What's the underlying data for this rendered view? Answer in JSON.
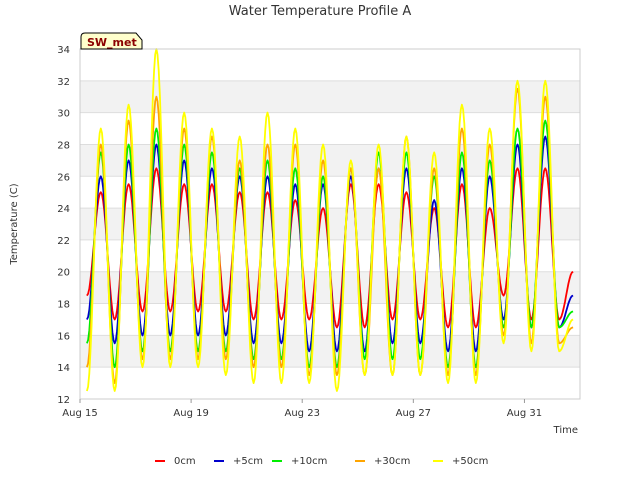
{
  "chart_data": {
    "type": "line",
    "title": "Water Temperature Profile A",
    "xlabel": "Time",
    "ylabel": "Temperature (C)",
    "site_badge": "SW_met",
    "x_ticks": [
      "Aug 15",
      "Aug 19",
      "Aug 23",
      "Aug 27",
      "Aug 31"
    ],
    "y_ticks": [
      12,
      14,
      16,
      18,
      20,
      22,
      24,
      26,
      28,
      30,
      32,
      34
    ],
    "ylim": [
      12,
      34
    ],
    "xlim": [
      "2023-08-15T00:00",
      "2023-09-02T00:00"
    ],
    "x": [
      "2023-08-15T06:00",
      "2023-08-15T18:00",
      "2023-08-16T06:00",
      "2023-08-16T18:00",
      "2023-08-17T06:00",
      "2023-08-17T18:00",
      "2023-08-18T06:00",
      "2023-08-18T18:00",
      "2023-08-19T06:00",
      "2023-08-19T18:00",
      "2023-08-20T06:00",
      "2023-08-20T18:00",
      "2023-08-21T06:00",
      "2023-08-21T18:00",
      "2023-08-22T06:00",
      "2023-08-22T18:00",
      "2023-08-23T06:00",
      "2023-08-23T18:00",
      "2023-08-24T06:00",
      "2023-08-24T18:00",
      "2023-08-25T06:00",
      "2023-08-25T18:00",
      "2023-08-26T06:00",
      "2023-08-26T18:00",
      "2023-08-27T06:00",
      "2023-08-27T18:00",
      "2023-08-28T06:00",
      "2023-08-28T18:00",
      "2023-08-29T06:00",
      "2023-08-29T18:00",
      "2023-08-30T06:00",
      "2023-08-30T18:00",
      "2023-08-31T06:00",
      "2023-08-31T18:00",
      "2023-09-01T06:00",
      "2023-09-01T18:00"
    ],
    "series": [
      {
        "name": "0cm",
        "color": "#ff0000",
        "values": [
          18.5,
          25.0,
          17.0,
          25.5,
          17.5,
          26.5,
          17.5,
          25.5,
          17.5,
          25.5,
          17.5,
          25.0,
          17.0,
          25.0,
          17.0,
          24.5,
          17.0,
          24.0,
          16.5,
          25.5,
          16.5,
          25.5,
          17.0,
          25.0,
          17.0,
          24.0,
          16.5,
          25.5,
          16.5,
          24.0,
          18.5,
          26.5,
          17.0,
          26.5,
          17.0,
          20.0
        ]
      },
      {
        "name": "+5cm",
        "color": "#0000cc",
        "values": [
          17.0,
          26.0,
          15.5,
          27.0,
          16.0,
          28.0,
          16.0,
          27.0,
          16.0,
          26.5,
          16.0,
          26.0,
          15.5,
          26.0,
          15.5,
          25.5,
          15.0,
          25.5,
          15.0,
          26.0,
          15.0,
          26.5,
          15.5,
          26.5,
          15.5,
          24.5,
          15.0,
          26.5,
          15.0,
          26.0,
          17.0,
          28.0,
          16.5,
          28.5,
          16.5,
          18.5
        ]
      },
      {
        "name": "+10cm",
        "color": "#00ee00",
        "values": [
          15.5,
          27.5,
          14.0,
          28.0,
          15.0,
          29.0,
          15.0,
          28.0,
          15.0,
          27.5,
          15.0,
          26.5,
          14.5,
          27.0,
          14.5,
          26.5,
          14.0,
          26.0,
          14.0,
          26.5,
          14.5,
          27.5,
          14.5,
          27.5,
          14.5,
          26.0,
          14.0,
          27.5,
          14.0,
          27.0,
          16.5,
          29.0,
          16.5,
          29.5,
          16.5,
          17.5
        ]
      },
      {
        "name": "+30cm",
        "color": "#ffa500",
        "values": [
          14.0,
          28.0,
          13.0,
          29.5,
          14.5,
          31.0,
          14.5,
          29.0,
          14.5,
          28.5,
          14.5,
          27.0,
          14.0,
          28.0,
          14.0,
          28.0,
          13.5,
          27.0,
          13.5,
          26.5,
          13.5,
          26.5,
          13.5,
          28.5,
          13.5,
          26.5,
          13.5,
          29.0,
          13.5,
          28.0,
          16.0,
          31.5,
          15.5,
          31.0,
          15.5,
          16.5
        ]
      },
      {
        "name": "+50cm",
        "color": "#ffff00",
        "values": [
          12.5,
          29.0,
          12.5,
          30.5,
          14.0,
          34.0,
          14.0,
          30.0,
          14.0,
          29.0,
          13.5,
          28.5,
          13.0,
          30.0,
          13.0,
          29.0,
          13.0,
          28.0,
          12.5,
          27.0,
          13.5,
          28.0,
          13.5,
          28.5,
          13.5,
          27.5,
          13.0,
          30.5,
          13.0,
          29.0,
          15.5,
          32.0,
          15.0,
          32.0,
          15.0,
          17.0
        ]
      }
    ],
    "grid": true,
    "banded_background": true,
    "legend_position": "bottom"
  }
}
